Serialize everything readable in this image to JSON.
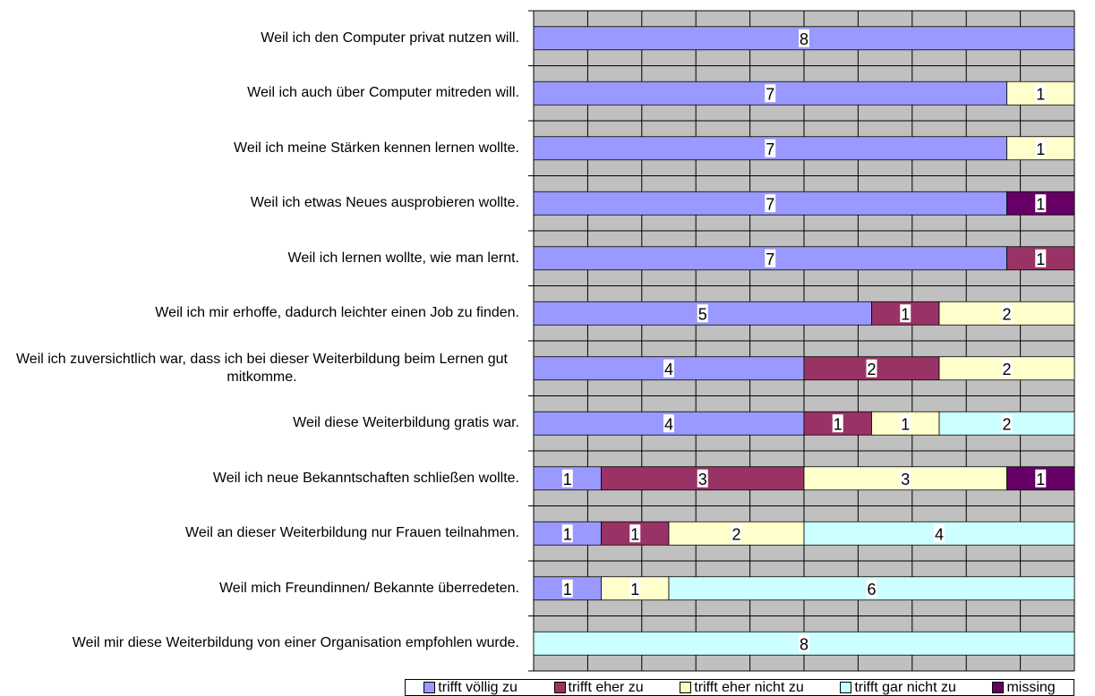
{
  "chart_data": {
    "type": "stacked-bar-horizontal",
    "categories": [
      "Weil ich den Computer privat nutzen will.",
      "Weil ich auch über Computer mitreden will.",
      "Weil ich meine Stärken kennen lernen wollte.",
      "Weil ich etwas Neues ausprobieren wollte.",
      "Weil ich lernen wollte, wie man lernt.",
      "Weil ich mir erhoffe, dadurch leichter einen Job zu finden.",
      "Weil ich zuversichtlich war, dass ich bei dieser Weiterbildung beim Lernen gut mitkomme.",
      "Weil diese Weiterbildung gratis war.",
      "Weil ich neue Bekanntschaften schließen wollte.",
      "Weil an dieser Weiterbildung nur Frauen teilnahmen.",
      "Weil mich Freundinnen/ Bekannte überredeten.",
      "Weil mir diese Weiterbildung von einer Organisation empfohlen wurde."
    ],
    "series": [
      {
        "name": "trifft völlig zu",
        "color": "#9999ff",
        "values": [
          8,
          7,
          7,
          7,
          7,
          5,
          4,
          4,
          1,
          1,
          1,
          0
        ]
      },
      {
        "name": "trifft eher zu",
        "color": "#993366",
        "values": [
          0,
          0,
          0,
          0,
          1,
          1,
          2,
          1,
          3,
          1,
          0,
          0
        ]
      },
      {
        "name": "trifft eher nicht zu",
        "color": "#ffffcc",
        "values": [
          0,
          1,
          1,
          0,
          0,
          2,
          2,
          1,
          3,
          2,
          1,
          0
        ]
      },
      {
        "name": "trifft gar nicht zu",
        "color": "#ccffff",
        "values": [
          0,
          0,
          0,
          0,
          0,
          0,
          0,
          2,
          0,
          4,
          6,
          8
        ]
      },
      {
        "name": "missing",
        "color": "#660066",
        "values": [
          0,
          0,
          0,
          1,
          0,
          0,
          0,
          0,
          1,
          0,
          0,
          0
        ]
      }
    ],
    "xlim": [
      0,
      8
    ],
    "xticks": [
      0,
      0.8,
      1.6,
      2.4,
      3.2,
      4,
      4.8,
      5.6,
      6.4,
      7.2,
      8
    ],
    "grid": true,
    "legend": "bottom"
  }
}
